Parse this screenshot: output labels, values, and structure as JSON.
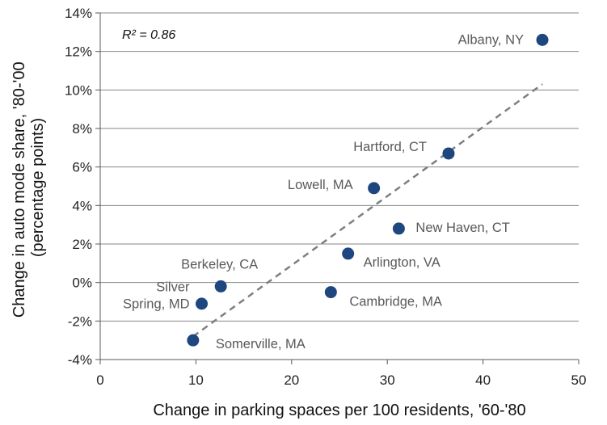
{
  "chart_data": {
    "type": "scatter",
    "title": "",
    "xlabel": "Change in parking spaces per 100 residents, '60-'80",
    "ylabel_lines": [
      "Change in auto mode share, '80-'00",
      "(percentage points)"
    ],
    "xlim": [
      0,
      50
    ],
    "ylim": [
      -4,
      14
    ],
    "x_ticks": [
      0,
      10,
      20,
      30,
      40,
      50
    ],
    "y_ticks": [
      -4,
      -2,
      0,
      2,
      4,
      6,
      8,
      10,
      12,
      14
    ],
    "y_tick_suffix": "%",
    "grid": "horizontal",
    "annotation": "R² = 0.86",
    "trendline": {
      "x": [
        9.7,
        46.2
      ],
      "y": [
        -2.8,
        10.3
      ],
      "style": "dashed"
    },
    "marker_color": "#1F477F",
    "trend_color": "#7F7F7F",
    "grid_color": "#868686",
    "points": [
      {
        "label": "Albany, NY",
        "lines": [
          "Albany, NY"
        ],
        "x": 46.2,
        "y": 12.6,
        "anchor": "end",
        "dx": -23,
        "dy": -1
      },
      {
        "label": "Hartford, CT",
        "lines": [
          "Hartford, CT"
        ],
        "x": 36.4,
        "y": 6.7,
        "anchor": "end",
        "dx": -27,
        "dy": -9
      },
      {
        "label": "Lowell, MA",
        "lines": [
          "Lowell, MA"
        ],
        "x": 28.6,
        "y": 4.9,
        "anchor": "end",
        "dx": -26,
        "dy": -5
      },
      {
        "label": "New Haven, CT",
        "lines": [
          "New Haven, CT"
        ],
        "x": 31.2,
        "y": 2.8,
        "anchor": "start",
        "dx": 21,
        "dy": -2
      },
      {
        "label": "Arlington, VA",
        "lines": [
          "Arlington, VA"
        ],
        "x": 25.9,
        "y": 1.5,
        "anchor": "start",
        "dx": 19,
        "dy": 10
      },
      {
        "label": "Berkeley, CA",
        "lines": [
          "Berkeley, CA"
        ],
        "x": 12.6,
        "y": -0.2,
        "anchor": "end",
        "dx": 46,
        "dy": -28
      },
      {
        "label": "Cambridge, MA",
        "lines": [
          "Cambridge, MA"
        ],
        "x": 24.1,
        "y": -0.5,
        "anchor": "start",
        "dx": 23,
        "dy": 11
      },
      {
        "label": "Silver Spring, MD",
        "lines": [
          "Silver",
          "Spring, MD"
        ],
        "x": 10.6,
        "y": -1.1,
        "anchor": "end",
        "dx": -15,
        "dy": -11
      },
      {
        "label": "Somerville, MA",
        "lines": [
          "Somerville, MA"
        ],
        "x": 9.7,
        "y": -3.0,
        "anchor": "start",
        "dx": 28,
        "dy": 4
      }
    ]
  }
}
